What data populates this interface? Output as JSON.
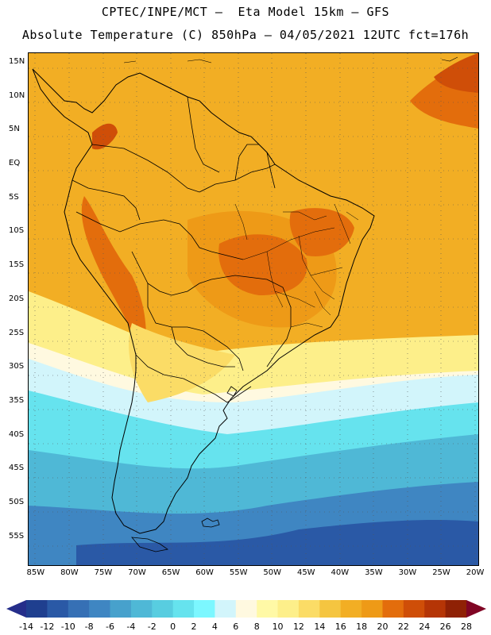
{
  "header": {
    "line1": "CPTEC/INPE/MCT –  Eta Model 15km – GFS",
    "line2": "Absolute Temperature (C) 850hPa – 04/05/2021 12UTC fct=176h"
  },
  "map": {
    "latitude_labels": [
      "15N",
      "10N",
      "5N",
      "EQ",
      "5S",
      "10S",
      "15S",
      "20S",
      "25S",
      "30S",
      "35S",
      "40S",
      "45S",
      "50S",
      "55S"
    ],
    "longitude_labels": [
      "85W",
      "80W",
      "75W",
      "70W",
      "65W",
      "60W",
      "55W",
      "50W",
      "45W",
      "40W",
      "35W",
      "30W",
      "25W",
      "20W"
    ],
    "extent": {
      "lon_west": -86,
      "lon_east": -19.5,
      "lat_north": 16.5,
      "lat_south": -59
    }
  },
  "colorbar": {
    "labels": [
      "-14",
      "-12",
      "-10",
      "-8",
      "-6",
      "-4",
      "-2",
      "0",
      "2",
      "4",
      "6",
      "8",
      "10",
      "12",
      "14",
      "16",
      "18",
      "20",
      "22",
      "24",
      "26",
      "28"
    ],
    "colors": [
      "#1f3f8f",
      "#2a59a6",
      "#3670b5",
      "#3f86c2",
      "#47a1cc",
      "#4fb8d6",
      "#58cde0",
      "#66e3ee",
      "#7cf7ff",
      "#d2f5fb",
      "#fff9e0",
      "#fff9a6",
      "#fdef8a",
      "#fbdc66",
      "#f5c540",
      "#f2ae24",
      "#ee9a17",
      "#e36d0c",
      "#cf4e08",
      "#b53506",
      "#8f2105"
    ],
    "under_color": "#252e8a",
    "over_color": "#800524"
  }
}
